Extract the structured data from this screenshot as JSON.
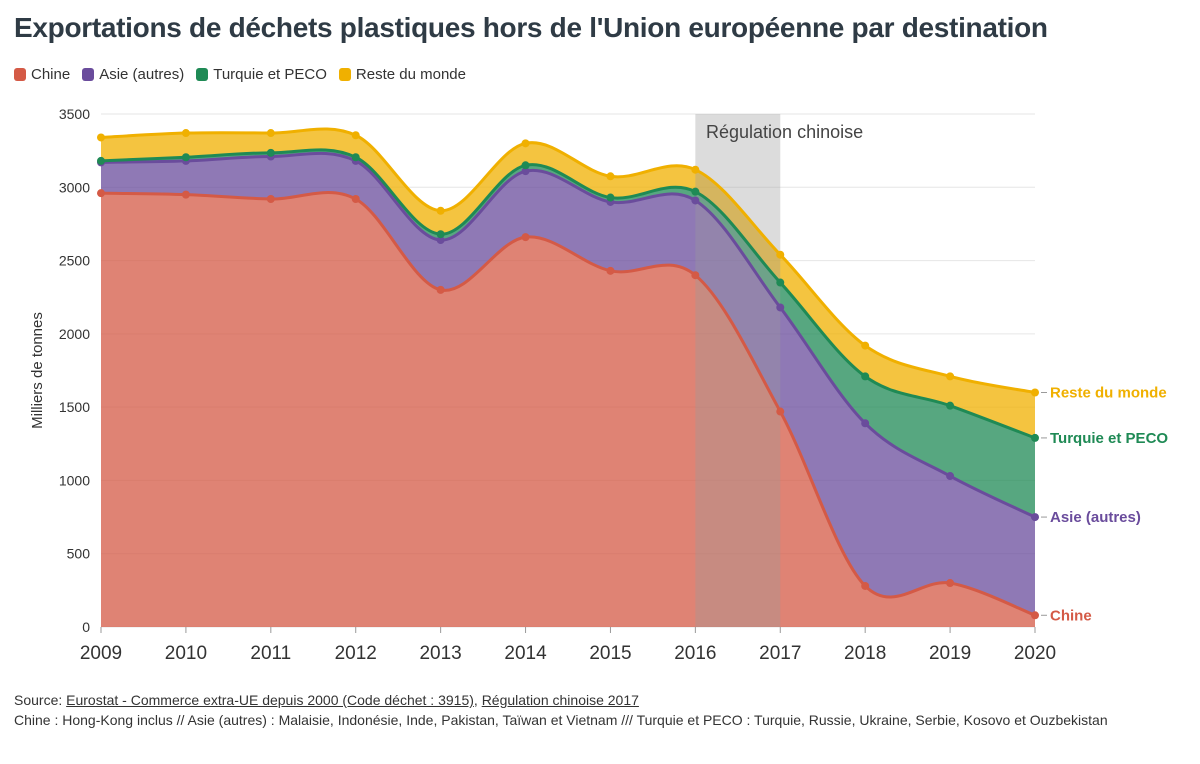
{
  "title": "Exportations de déchets plastiques hors de l'Union européenne par destination",
  "legend": [
    {
      "label": "Chine",
      "color": "#d45a46"
    },
    {
      "label": "Asie (autres)",
      "color": "#6a4c9c"
    },
    {
      "label": "Turquie et PECO",
      "color": "#1f8a55"
    },
    {
      "label": "Reste du monde",
      "color": "#f0b000"
    }
  ],
  "annotation": "Régulation chinoise",
  "chart_data": {
    "type": "area",
    "stacked": true,
    "x": [
      2009,
      2010,
      2011,
      2012,
      2013,
      2014,
      2015,
      2016,
      2017,
      2018,
      2019,
      2020
    ],
    "ylabel": "Milliers de tonnes",
    "ylim": [
      0,
      3500
    ],
    "yticks": [
      0,
      500,
      1000,
      1500,
      2000,
      2500,
      3000,
      3500
    ],
    "grid": true,
    "legend_position": "top-left",
    "shaded_region": {
      "from": 2016,
      "to": 2017,
      "label": "Régulation chinoise"
    },
    "series": [
      {
        "name": "Chine",
        "color": "#d45a46",
        "values": [
          2960,
          2950,
          2920,
          2920,
          2300,
          2660,
          2430,
          2400,
          1470,
          280,
          300,
          80
        ]
      },
      {
        "name": "Asie (autres)",
        "color": "#6a4c9c",
        "values": [
          210,
          230,
          290,
          260,
          340,
          450,
          470,
          510,
          710,
          1110,
          730,
          670
        ]
      },
      {
        "name": "Turquie et PECO",
        "color": "#1f8a55",
        "values": [
          10,
          25,
          25,
          25,
          40,
          40,
          30,
          60,
          170,
          320,
          480,
          540
        ]
      },
      {
        "name": "Reste du monde",
        "color": "#f0b000",
        "values": [
          160,
          165,
          135,
          150,
          160,
          150,
          145,
          150,
          190,
          210,
          200,
          310
        ]
      }
    ],
    "end_labels": [
      "Reste du monde",
      "Turquie et PECO",
      "Asie (autres)",
      "Chine"
    ]
  },
  "footer": {
    "source_prefix": "Source: ",
    "link1": "Eurostat - Commerce extra-UE depuis 2000 (Code déchet : 3915)",
    "separator": ", ",
    "link2": "Régulation chinoise 2017",
    "note": "Chine : Hong-Kong inclus // Asie (autres) : Malaisie, Indonésie, Inde, Pakistan, Taïwan et Vietnam /// Turquie et PECO : Turquie, Russie, Ukraine, Serbie, Kosovo et Ouzbekistan"
  }
}
